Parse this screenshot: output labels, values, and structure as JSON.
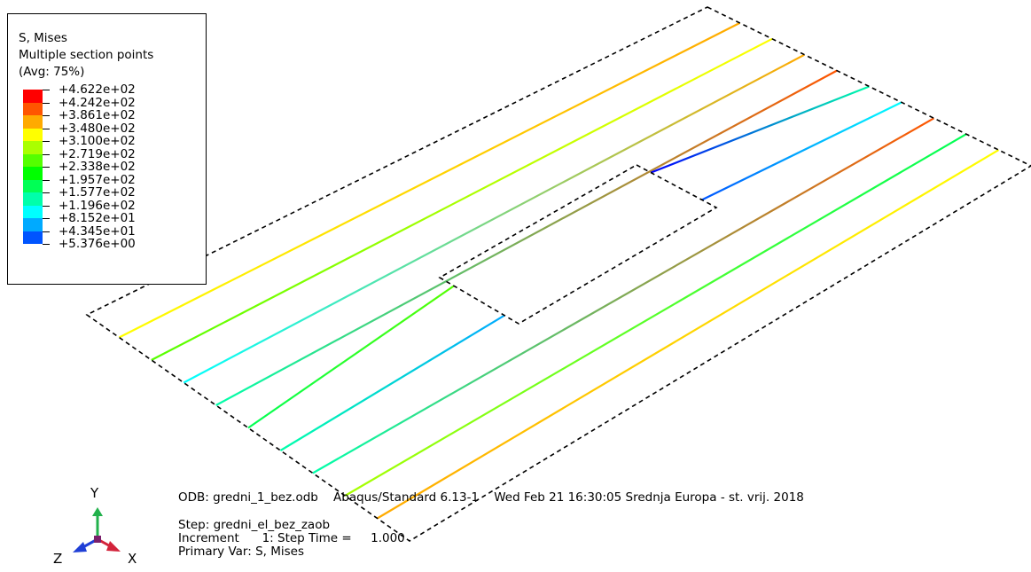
{
  "legend": {
    "variable": "S, Mises",
    "subtitle": "Multiple section points",
    "averaging": "(Avg: 75%)",
    "levels": [
      {
        "label": "+4.622e+02",
        "color": "#ff0000"
      },
      {
        "label": "+4.242e+02",
        "color": "#ff5500"
      },
      {
        "label": "+3.861e+02",
        "color": "#ffaa00"
      },
      {
        "label": "+3.480e+02",
        "color": "#ffff00"
      },
      {
        "label": "+3.100e+02",
        "color": "#aaff00"
      },
      {
        "label": "+2.719e+02",
        "color": "#55ff00"
      },
      {
        "label": "+2.338e+02",
        "color": "#00ff00"
      },
      {
        "label": "+1.957e+02",
        "color": "#00ff55"
      },
      {
        "label": "+1.577e+02",
        "color": "#00ffaa"
      },
      {
        "label": "+1.196e+02",
        "color": "#00ffff"
      },
      {
        "label": "+8.152e+01",
        "color": "#00aaff"
      },
      {
        "label": "+4.345e+01",
        "color": "#0055ff"
      },
      {
        "label": "+5.376e+00",
        "color": "#0000ff"
      }
    ]
  },
  "info": {
    "odb": "ODB: gredni_1_bez.odb    Abaqus/Standard 6.13-1    Wed Feb 21 16:30:05 Srednja Europa - st. vrij. 2018",
    "step": "Step: gredni_el_bez_zaob",
    "increment": "Increment      1: Step Time =     1.000",
    "primary_var": "Primary Var: S, Mises"
  },
  "triad": {
    "y": "Y",
    "z": "Z",
    "x": "X"
  },
  "model": {
    "beams": [
      {
        "segments": [
          {
            "from": "#ffff00",
            "to": "#ffaa00"
          }
        ]
      },
      {
        "segments": [
          {
            "from": "#55ff00",
            "to": "#ffff00"
          }
        ]
      },
      {
        "segments": [
          {
            "from": "#00ffff",
            "to": "#ffaa00"
          }
        ]
      },
      {
        "segments": [
          {
            "from": "#00ffaa",
            "to": "#ff5500"
          }
        ]
      },
      {
        "segments": [
          {
            "from": "#00ff55",
            "to": "#55ff00"
          },
          {
            "from": "#0000ff",
            "to": "#00ffaa"
          }
        ]
      },
      {
        "segments": [
          {
            "from": "#00ffaa",
            "to": "#00aaff"
          },
          {
            "from": "#0055ff",
            "to": "#00ffff"
          }
        ]
      },
      {
        "segments": [
          {
            "from": "#00ffaa",
            "to": "#ff5500"
          }
        ]
      },
      {
        "segments": [
          {
            "from": "#aaff00",
            "to": "#00ff55"
          }
        ]
      },
      {
        "segments": [
          {
            "from": "#ffaa00",
            "to": "#ffff00"
          }
        ]
      }
    ]
  }
}
